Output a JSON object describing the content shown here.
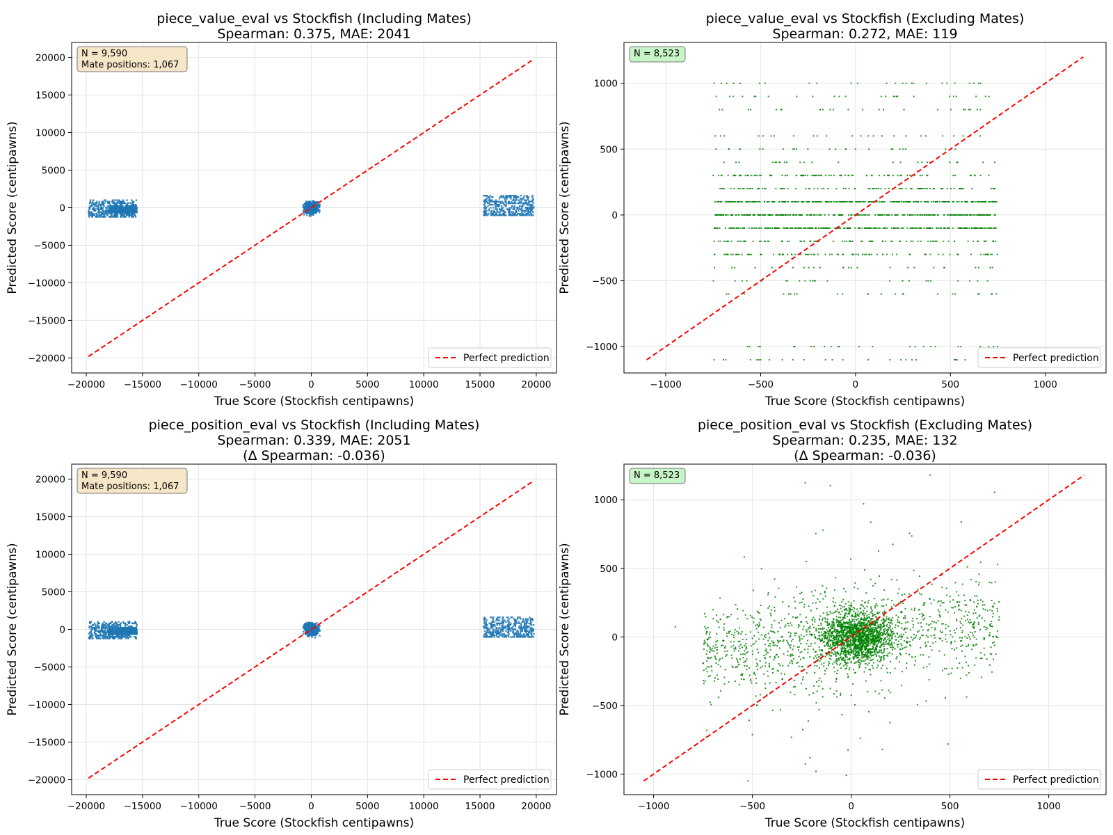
{
  "chart_data": [
    {
      "type": "scatter",
      "title_line1": "piece_value_eval vs Stockfish (Including Mates)",
      "title_line2": "Spearman: 0.375, MAE: 2041",
      "title_line3": "",
      "xlabel": "True Score (Stockfish centipawns)",
      "ylabel": "Predicted Score (centipawns)",
      "xlim": [
        -21300,
        21800
      ],
      "ylim": [
        -22000,
        22000
      ],
      "xticks": [
        -20000,
        -15000,
        -10000,
        -5000,
        0,
        5000,
        10000,
        15000,
        20000
      ],
      "yticks": [
        -20000,
        -15000,
        -10000,
        -5000,
        0,
        5000,
        10000,
        15000,
        20000
      ],
      "xtick_labels": [
        "−20000",
        "−15000",
        "−10000",
        "−5000",
        "0",
        "5000",
        "10000",
        "15000",
        "20000"
      ],
      "ytick_labels": [
        "−20000",
        "−15000",
        "−10000",
        "−5000",
        "0",
        "5000",
        "10000",
        "15000",
        "20000"
      ],
      "grid": true,
      "point_color": "#1f77b4",
      "info_box": {
        "lines": [
          "N = 9,590",
          "Mate positions: 1,067"
        ],
        "bg": "#f5e6c8"
      },
      "legend": {
        "position": "lower-right",
        "entries": [
          "Perfect prediction"
        ]
      },
      "reference_line": {
        "from": [
          -19800,
          -19800
        ],
        "to": [
          19800,
          19800
        ],
        "color": "#ff0000",
        "style": "dashed"
      },
      "series": [
        {
          "name": "mate losses",
          "clusters": [
            {
              "x": [
                -19800,
                -15500
              ],
              "y": [
                -1200,
                1000
              ],
              "density": "medium"
            },
            {
              "x": [
                -18000,
                -15500
              ],
              "y": [
                -700,
                200
              ],
              "density": "medium"
            }
          ]
        },
        {
          "name": "non-mate positions",
          "clusters": [
            {
              "x": [
                -700,
                750
              ],
              "y": [
                -1100,
                1100
              ],
              "density": "high"
            }
          ]
        },
        {
          "name": "mate wins",
          "clusters": [
            {
              "x": [
                15300,
                19800
              ],
              "y": [
                -1100,
                1700
              ],
              "density": "medium"
            }
          ]
        }
      ]
    },
    {
      "type": "scatter",
      "title_line1": "piece_value_eval vs Stockfish (Excluding Mates)",
      "title_line2": "Spearman: 0.272, MAE: 119",
      "title_line3": "",
      "xlabel": "True Score (Stockfish centipawns)",
      "ylabel": "Predicted Score (centipawns)",
      "xlim": [
        -1220,
        1320
      ],
      "ylim": [
        -1200,
        1310
      ],
      "xticks": [
        -1000,
        -500,
        0,
        500,
        1000
      ],
      "yticks": [
        -1000,
        -500,
        0,
        500,
        1000
      ],
      "xtick_labels": [
        "−1000",
        "−500",
        "0",
        "500",
        "1000"
      ],
      "ytick_labels": [
        "−1000",
        "−500",
        "0",
        "500",
        "1000"
      ],
      "grid": true,
      "point_color": "#008000",
      "info_box": {
        "lines": [
          "N = 8,523"
        ],
        "bg": "#c8f5c8"
      },
      "legend": {
        "position": "lower-right",
        "entries": [
          "Perfect prediction"
        ]
      },
      "reference_line": {
        "from": [
          -1100,
          -1100
        ],
        "to": [
          1200,
          1200
        ],
        "color": "#ff0000",
        "style": "dashed"
      },
      "series": [
        {
          "name": "predictions",
          "levels": [
            -1100,
            -1000,
            -600,
            -500,
            -400,
            -300,
            -200,
            -100,
            0,
            100,
            200,
            300,
            400,
            500,
            600,
            800,
            900,
            1000
          ],
          "x_range": [
            -750,
            750
          ]
        }
      ]
    },
    {
      "type": "scatter",
      "title_line1": "piece_position_eval vs Stockfish (Including Mates)",
      "title_line2": "Spearman: 0.339, MAE: 2051",
      "title_line3": "(Δ Spearman: -0.036)",
      "xlabel": "True Score (Stockfish centipawns)",
      "ylabel": "Predicted Score (centipawns)",
      "xlim": [
        -21300,
        21800
      ],
      "ylim": [
        -22000,
        22000
      ],
      "xticks": [
        -20000,
        -15000,
        -10000,
        -5000,
        0,
        5000,
        10000,
        15000,
        20000
      ],
      "yticks": [
        -20000,
        -15000,
        -10000,
        -5000,
        0,
        5000,
        10000,
        15000,
        20000
      ],
      "xtick_labels": [
        "−20000",
        "−15000",
        "−10000",
        "−5000",
        "0",
        "5000",
        "10000",
        "15000",
        "20000"
      ],
      "ytick_labels": [
        "−20000",
        "−15000",
        "−10000",
        "−5000",
        "0",
        "5000",
        "10000",
        "15000",
        "20000"
      ],
      "grid": true,
      "point_color": "#1f77b4",
      "info_box": {
        "lines": [
          "N = 9,590",
          "Mate positions: 1,067"
        ],
        "bg": "#f5e6c8"
      },
      "legend": {
        "position": "lower-right",
        "entries": [
          "Perfect prediction"
        ]
      },
      "reference_line": {
        "from": [
          -19800,
          -19800
        ],
        "to": [
          19800,
          19800
        ],
        "color": "#ff0000",
        "style": "dashed"
      },
      "series": [
        {
          "name": "mate losses",
          "clusters": [
            {
              "x": [
                -19800,
                -15500
              ],
              "y": [
                -1200,
                1000
              ],
              "density": "medium"
            },
            {
              "x": [
                -18000,
                -15500
              ],
              "y": [
                -700,
                200
              ],
              "density": "medium"
            }
          ]
        },
        {
          "name": "non-mate positions",
          "clusters": [
            {
              "x": [
                -700,
                750
              ],
              "y": [
                -1100,
                1100
              ],
              "density": "high"
            }
          ]
        },
        {
          "name": "mate wins",
          "clusters": [
            {
              "x": [
                15300,
                19800
              ],
              "y": [
                -1100,
                1700
              ],
              "density": "medium"
            }
          ]
        }
      ]
    },
    {
      "type": "scatter",
      "title_line1": "piece_position_eval vs Stockfish (Excluding Mates)",
      "title_line2": "Spearman: 0.235, MAE: 132",
      "title_line3": "(Δ Spearman: -0.036)",
      "xlabel": "True Score (Stockfish centipawns)",
      "ylabel": "Predicted Score (centipawns)",
      "xlim": [
        -1150,
        1290
      ],
      "ylim": [
        -1150,
        1260
      ],
      "xticks": [
        -1000,
        -500,
        0,
        500,
        1000
      ],
      "yticks": [
        -1000,
        -500,
        0,
        500,
        1000
      ],
      "xtick_labels": [
        "−1000",
        "−500",
        "0",
        "500",
        "1000"
      ],
      "ytick_labels": [
        "−1000",
        "−500",
        "0",
        "500",
        "1000"
      ],
      "grid": true,
      "point_color": "#008000",
      "info_box": {
        "lines": [
          "N = 8,523"
        ],
        "bg": "#c8f5c8"
      },
      "legend": {
        "position": "lower-right",
        "entries": [
          "Perfect prediction"
        ]
      },
      "reference_line": {
        "from": [
          -1050,
          -1050
        ],
        "to": [
          1180,
          1180
        ],
        "color": "#ff0000",
        "style": "dashed"
      },
      "series": [
        {
          "name": "predictions",
          "core": {
            "x": [
              -100,
              150
            ],
            "y": [
              -200,
              200
            ]
          },
          "x_range": [
            -750,
            750
          ],
          "y_range": [
            -1050,
            1180
          ]
        }
      ]
    }
  ]
}
